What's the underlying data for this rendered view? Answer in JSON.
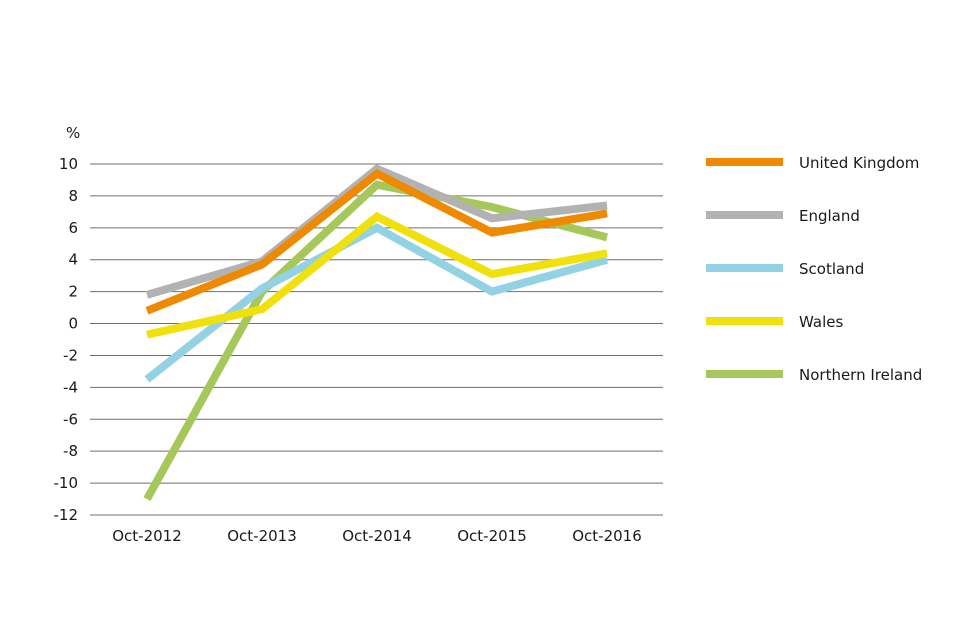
{
  "chart_data": {
    "type": "line",
    "title": "",
    "xlabel": "",
    "ylabel": "%",
    "categories": [
      "Oct-2012",
      "Oct-2013",
      "Oct-2014",
      "Oct-2015",
      "Oct-2016"
    ],
    "ylim": [
      -12,
      10
    ],
    "yticks": [
      10,
      8,
      6,
      4,
      2,
      0,
      -2,
      -4,
      -6,
      -8,
      -10,
      -12
    ],
    "grid": true,
    "legend_position": "right",
    "series": [
      {
        "name": "United Kingdom",
        "color": "#ef8a00",
        "values": [
          0.8,
          3.7,
          9.4,
          5.7,
          6.9
        ]
      },
      {
        "name": "England",
        "color": "#b2b2b2",
        "values": [
          1.8,
          3.9,
          9.7,
          6.6,
          7.4
        ]
      },
      {
        "name": "Scotland",
        "color": "#93d1e4",
        "values": [
          -3.5,
          2.2,
          6.0,
          2.0,
          4.0
        ]
      },
      {
        "name": "Wales",
        "color": "#f0e10c",
        "values": [
          -0.7,
          0.9,
          6.7,
          3.1,
          4.4
        ]
      },
      {
        "name": "Northern Ireland",
        "color": "#a6c85a",
        "values": [
          -11.0,
          2.0,
          8.7,
          7.3,
          5.4
        ]
      }
    ]
  }
}
